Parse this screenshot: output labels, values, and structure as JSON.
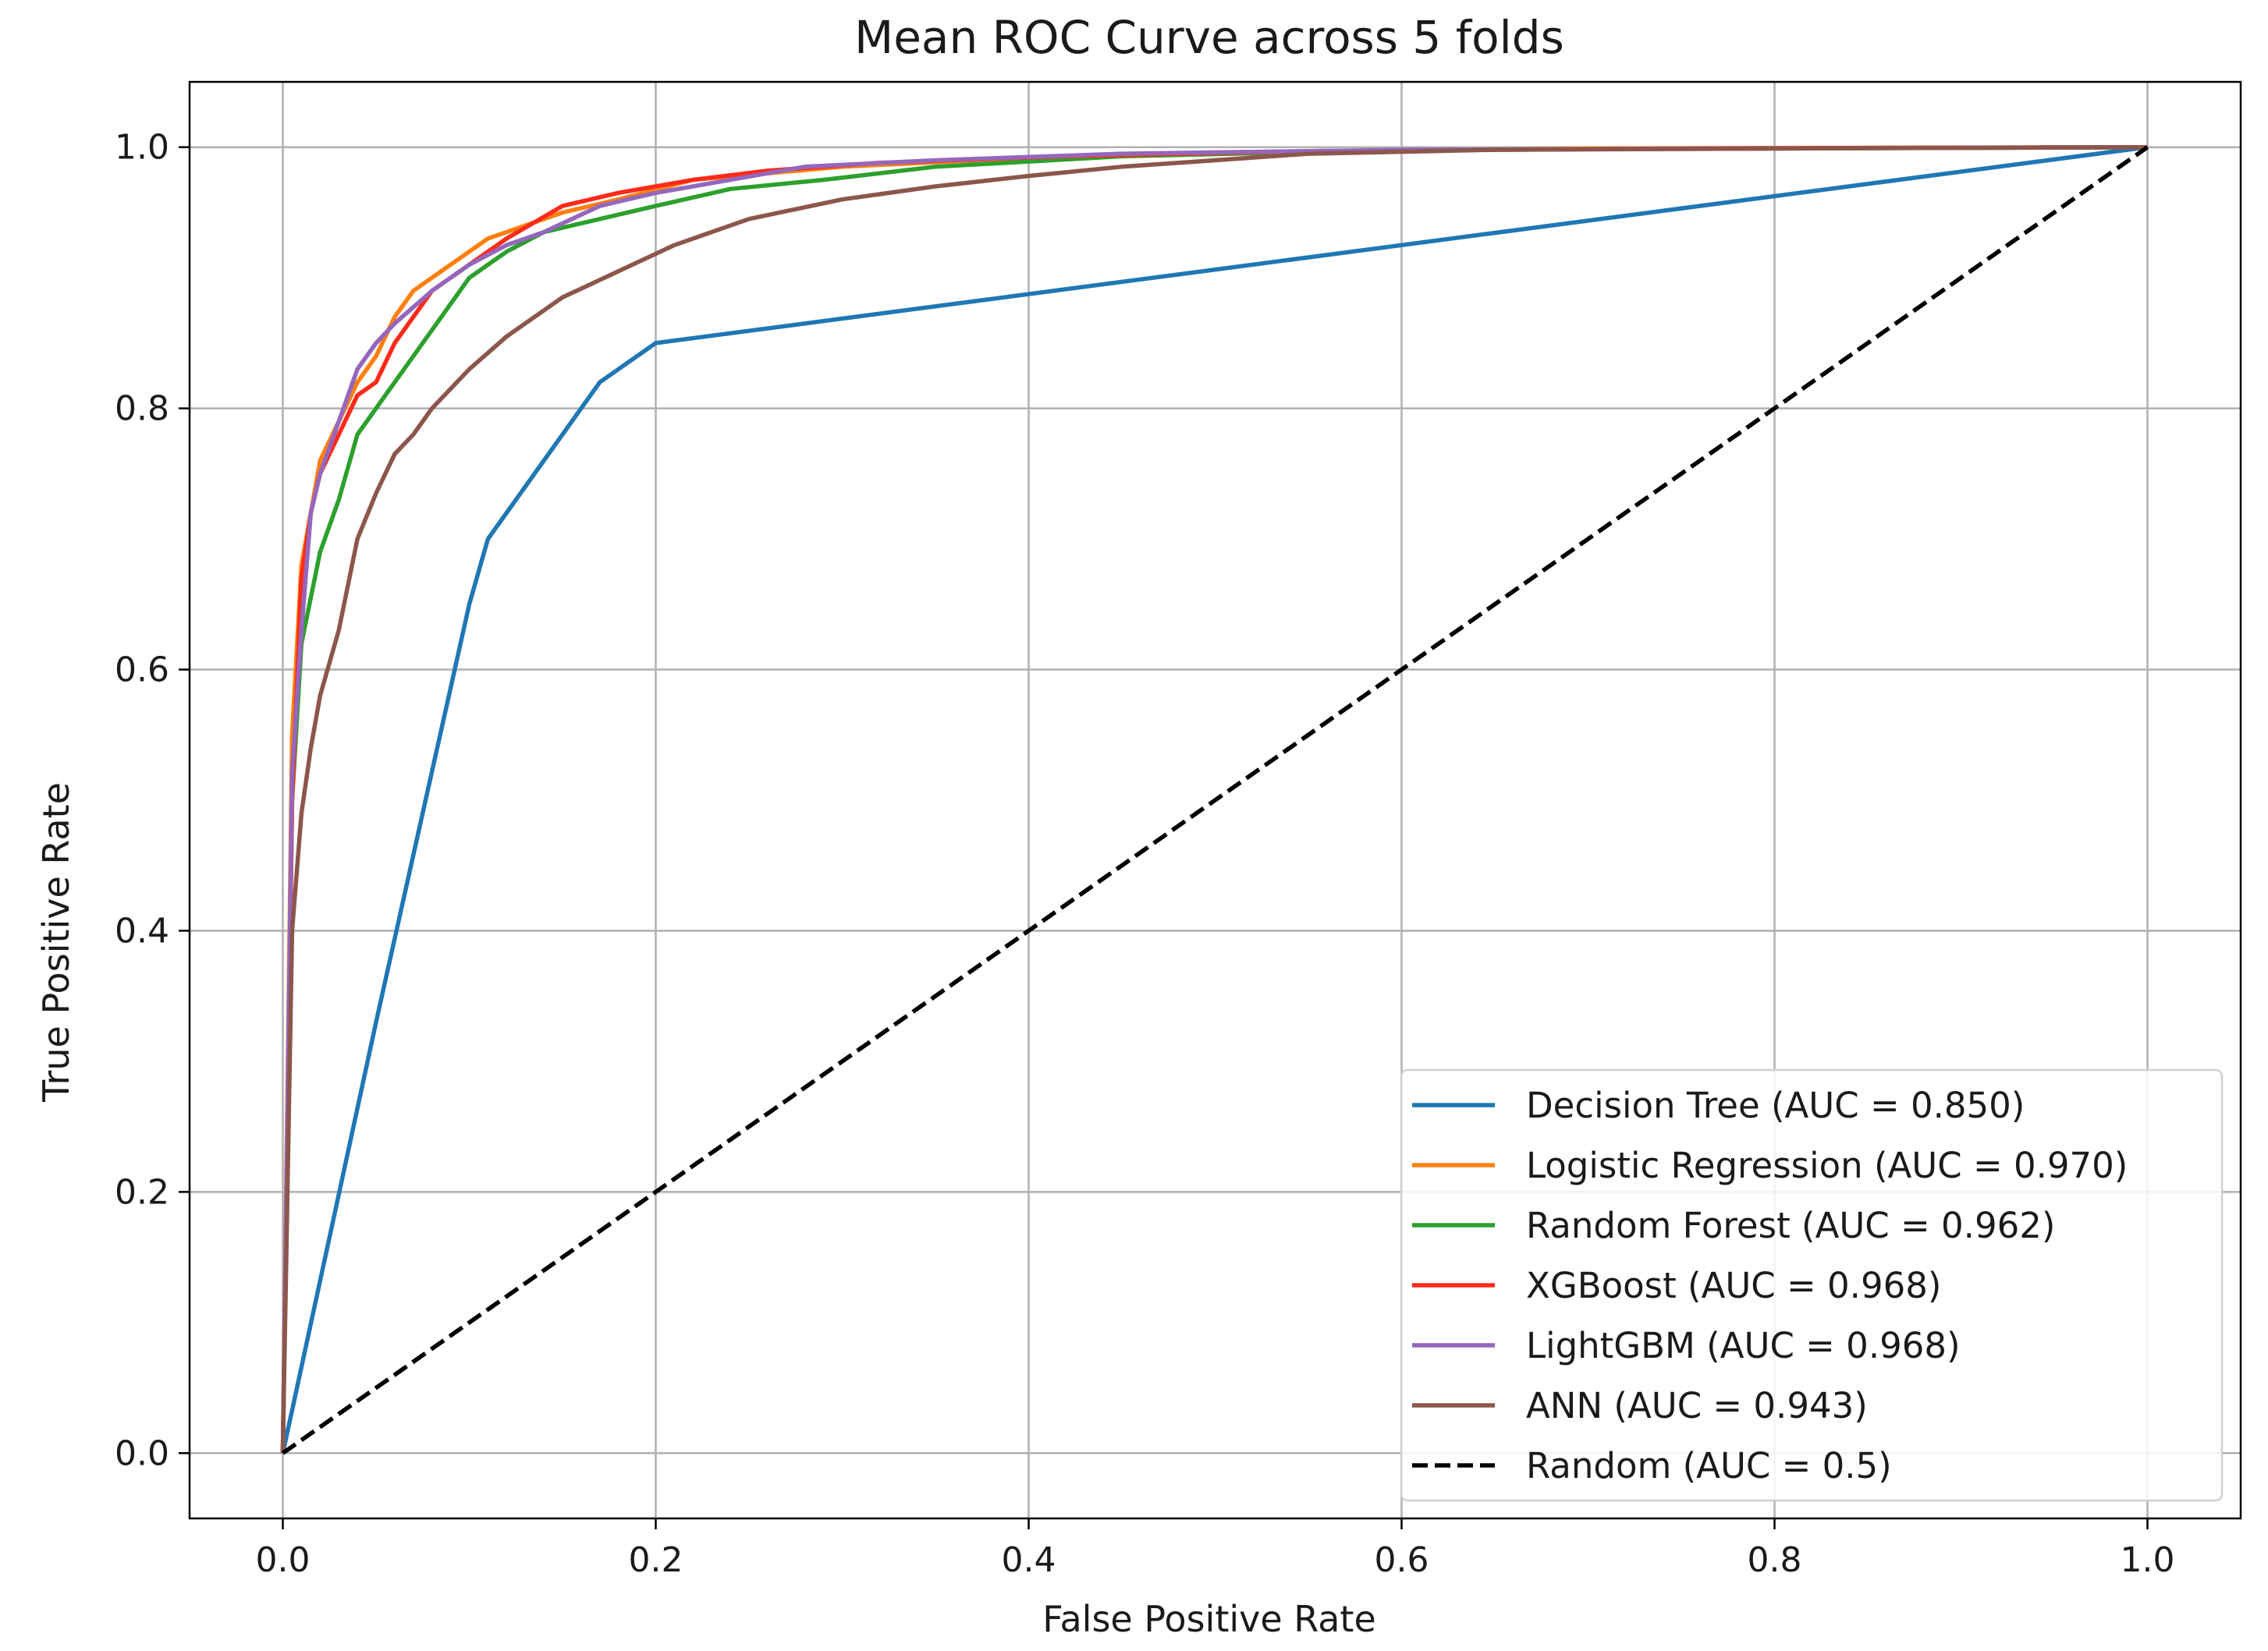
{
  "chart_data": {
    "type": "line",
    "title": "Mean ROC Curve across 5 folds",
    "xlabel": "False Positive Rate",
    "ylabel": "True Positive Rate",
    "xlim": [
      -0.05,
      1.05
    ],
    "ylim": [
      -0.05,
      1.05
    ],
    "xticks": [
      0.0,
      0.2,
      0.4,
      0.6,
      0.8,
      1.0
    ],
    "xtick_labels": [
      "0.0",
      "0.2",
      "0.4",
      "0.6",
      "0.8",
      "1.0"
    ],
    "yticks": [
      0.0,
      0.2,
      0.4,
      0.6,
      0.8,
      1.0
    ],
    "ytick_labels": [
      "0.0",
      "0.2",
      "0.4",
      "0.6",
      "0.8",
      "1.0"
    ],
    "grid": true,
    "legend_position": "lower-right",
    "series": [
      {
        "name": "Decision Tree (AUC = 0.850)",
        "color": "#1f77b4",
        "dash": "solid",
        "x": [
          0.0,
          0.05,
          0.1,
          0.11,
          0.12,
          0.17,
          0.2,
          1.0
        ],
        "y": [
          0.0,
          0.33,
          0.65,
          0.7,
          0.72,
          0.82,
          0.85,
          1.0
        ]
      },
      {
        "name": "Logistic Regression (AUC = 0.970)",
        "color": "#ff7f0e",
        "dash": "solid",
        "x": [
          0.0,
          0.005,
          0.01,
          0.015,
          0.02,
          0.03,
          0.04,
          0.05,
          0.06,
          0.07,
          0.09,
          0.11,
          0.13,
          0.15,
          0.18,
          0.22,
          0.26,
          0.3,
          0.4,
          0.5,
          0.7,
          1.0
        ],
        "y": [
          0.0,
          0.55,
          0.68,
          0.72,
          0.76,
          0.79,
          0.82,
          0.84,
          0.87,
          0.89,
          0.91,
          0.93,
          0.94,
          0.95,
          0.96,
          0.975,
          0.98,
          0.985,
          0.992,
          0.996,
          0.999,
          1.0
        ]
      },
      {
        "name": "Random Forest (AUC = 0.962)",
        "color": "#2ca02c",
        "dash": "solid",
        "x": [
          0.0,
          0.005,
          0.01,
          0.02,
          0.03,
          0.04,
          0.05,
          0.06,
          0.07,
          0.08,
          0.1,
          0.12,
          0.14,
          0.17,
          0.2,
          0.24,
          0.29,
          0.35,
          0.45,
          0.6,
          0.8,
          1.0
        ],
        "y": [
          0.0,
          0.5,
          0.62,
          0.69,
          0.73,
          0.78,
          0.8,
          0.82,
          0.84,
          0.86,
          0.9,
          0.92,
          0.935,
          0.945,
          0.955,
          0.968,
          0.975,
          0.985,
          0.993,
          0.998,
          0.999,
          1.0
        ]
      },
      {
        "name": "XGBoost (AUC = 0.968)",
        "color": "#ff2a1a",
        "dash": "solid",
        "x": [
          0.0,
          0.005,
          0.01,
          0.015,
          0.02,
          0.03,
          0.04,
          0.05,
          0.06,
          0.07,
          0.08,
          0.1,
          0.12,
          0.15,
          0.18,
          0.22,
          0.26,
          0.32,
          0.42,
          0.55,
          0.75,
          1.0
        ],
        "y": [
          0.0,
          0.5,
          0.67,
          0.72,
          0.75,
          0.78,
          0.81,
          0.82,
          0.85,
          0.87,
          0.89,
          0.91,
          0.93,
          0.955,
          0.965,
          0.975,
          0.982,
          0.988,
          0.993,
          0.997,
          0.999,
          1.0
        ]
      },
      {
        "name": "LightGBM (AUC = 0.968)",
        "color": "#9467bd",
        "dash": "solid",
        "x": [
          0.0,
          0.005,
          0.01,
          0.015,
          0.02,
          0.03,
          0.04,
          0.05,
          0.06,
          0.08,
          0.1,
          0.12,
          0.14,
          0.17,
          0.2,
          0.24,
          0.28,
          0.35,
          0.45,
          0.6,
          0.8,
          1.0
        ],
        "y": [
          0.0,
          0.52,
          0.63,
          0.72,
          0.75,
          0.79,
          0.83,
          0.85,
          0.865,
          0.89,
          0.91,
          0.925,
          0.935,
          0.955,
          0.965,
          0.975,
          0.985,
          0.99,
          0.995,
          0.998,
          0.999,
          1.0
        ]
      },
      {
        "name": "ANN (AUC = 0.943)",
        "color": "#8c564b",
        "dash": "solid",
        "x": [
          0.0,
          0.005,
          0.01,
          0.015,
          0.02,
          0.03,
          0.04,
          0.05,
          0.06,
          0.07,
          0.08,
          0.09,
          0.1,
          0.12,
          0.15,
          0.18,
          0.21,
          0.25,
          0.3,
          0.35,
          0.4,
          0.45,
          0.5,
          0.55,
          0.65,
          0.8,
          1.0
        ],
        "y": [
          0.0,
          0.4,
          0.49,
          0.54,
          0.58,
          0.63,
          0.7,
          0.735,
          0.765,
          0.78,
          0.8,
          0.815,
          0.83,
          0.855,
          0.885,
          0.905,
          0.925,
          0.945,
          0.96,
          0.97,
          0.978,
          0.985,
          0.99,
          0.995,
          0.998,
          0.999,
          1.0
        ]
      },
      {
        "name": "Random (AUC = 0.5)",
        "color": "#000000",
        "dash": "dashed",
        "x": [
          0.0,
          1.0
        ],
        "y": [
          0.0,
          1.0
        ]
      }
    ]
  }
}
